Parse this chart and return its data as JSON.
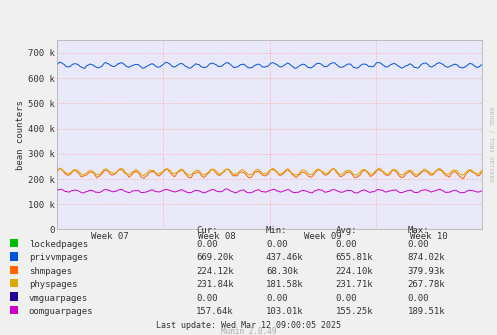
{
  "ylabel": "bean counters",
  "background_color": "#f0f0f0",
  "plot_bg_color": "#e8e8f8",
  "grid_color_h": "#ffaaaa",
  "grid_color_v": "#ffaaaa",
  "week_labels": [
    "Week 07",
    "Week 08",
    "Week 09",
    "Week 10"
  ],
  "ylim": [
    0,
    750000
  ],
  "yticks": [
    0,
    100000,
    200000,
    300000,
    400000,
    500000,
    600000,
    700000
  ],
  "ytick_labels": [
    "0",
    "100 k",
    "200 k",
    "300 k",
    "400 k",
    "500 k",
    "600 k",
    "700 k"
  ],
  "series": [
    {
      "name": "lockedpages",
      "color": "#00bb00",
      "base": 0,
      "small_amp": 0,
      "big_amp": 0,
      "noise_std": 0
    },
    {
      "name": "privvmpages",
      "color": "#0055dd",
      "base": 650000,
      "small_amp": 8000,
      "big_amp": 3000,
      "noise_std": 2000
    },
    {
      "name": "shmpages",
      "color": "#ff6600",
      "base": 222000,
      "small_amp": 12000,
      "big_amp": 5000,
      "noise_std": 3000
    },
    {
      "name": "physpages",
      "color": "#ddaa00",
      "base": 228000,
      "small_amp": 10000,
      "big_amp": 3000,
      "noise_std": 2000
    },
    {
      "name": "vmguarpages",
      "color": "#220099",
      "base": 0,
      "small_amp": 0,
      "big_amp": 0,
      "noise_std": 0
    },
    {
      "name": "oomguarpages",
      "color": "#cc00cc",
      "base": 152000,
      "small_amp": 5000,
      "big_amp": 2000,
      "noise_std": 1500
    }
  ],
  "legend_items": [
    {
      "label": "lockedpages",
      "color": "#00bb00",
      "cur": "0.00",
      "min": "0.00",
      "avg": "0.00",
      "max": "0.00"
    },
    {
      "label": "privvmpages",
      "color": "#0055dd",
      "cur": "669.20k",
      "min": "437.46k",
      "avg": "655.81k",
      "max": "874.02k"
    },
    {
      "label": "shmpages",
      "color": "#ff6600",
      "cur": "224.12k",
      "min": "68.30k",
      "avg": "224.10k",
      "max": "379.93k"
    },
    {
      "label": "physpages",
      "color": "#ddaa00",
      "cur": "231.84k",
      "min": "181.58k",
      "avg": "231.71k",
      "max": "267.78k"
    },
    {
      "label": "vmguarpages",
      "color": "#220099",
      "cur": "0.00",
      "min": "0.00",
      "avg": "0.00",
      "max": "0.00"
    },
    {
      "label": "oomguarpages",
      "color": "#cc00cc",
      "cur": "157.64k",
      "min": "103.01k",
      "avg": "155.25k",
      "max": "189.51k"
    }
  ],
  "footer": "Last update: Wed Mar 12 09:00:05 2025",
  "munin_version": "Munin 2.0.49",
  "right_label": "RROOL / TOBI OETIKER",
  "n_points": 600
}
